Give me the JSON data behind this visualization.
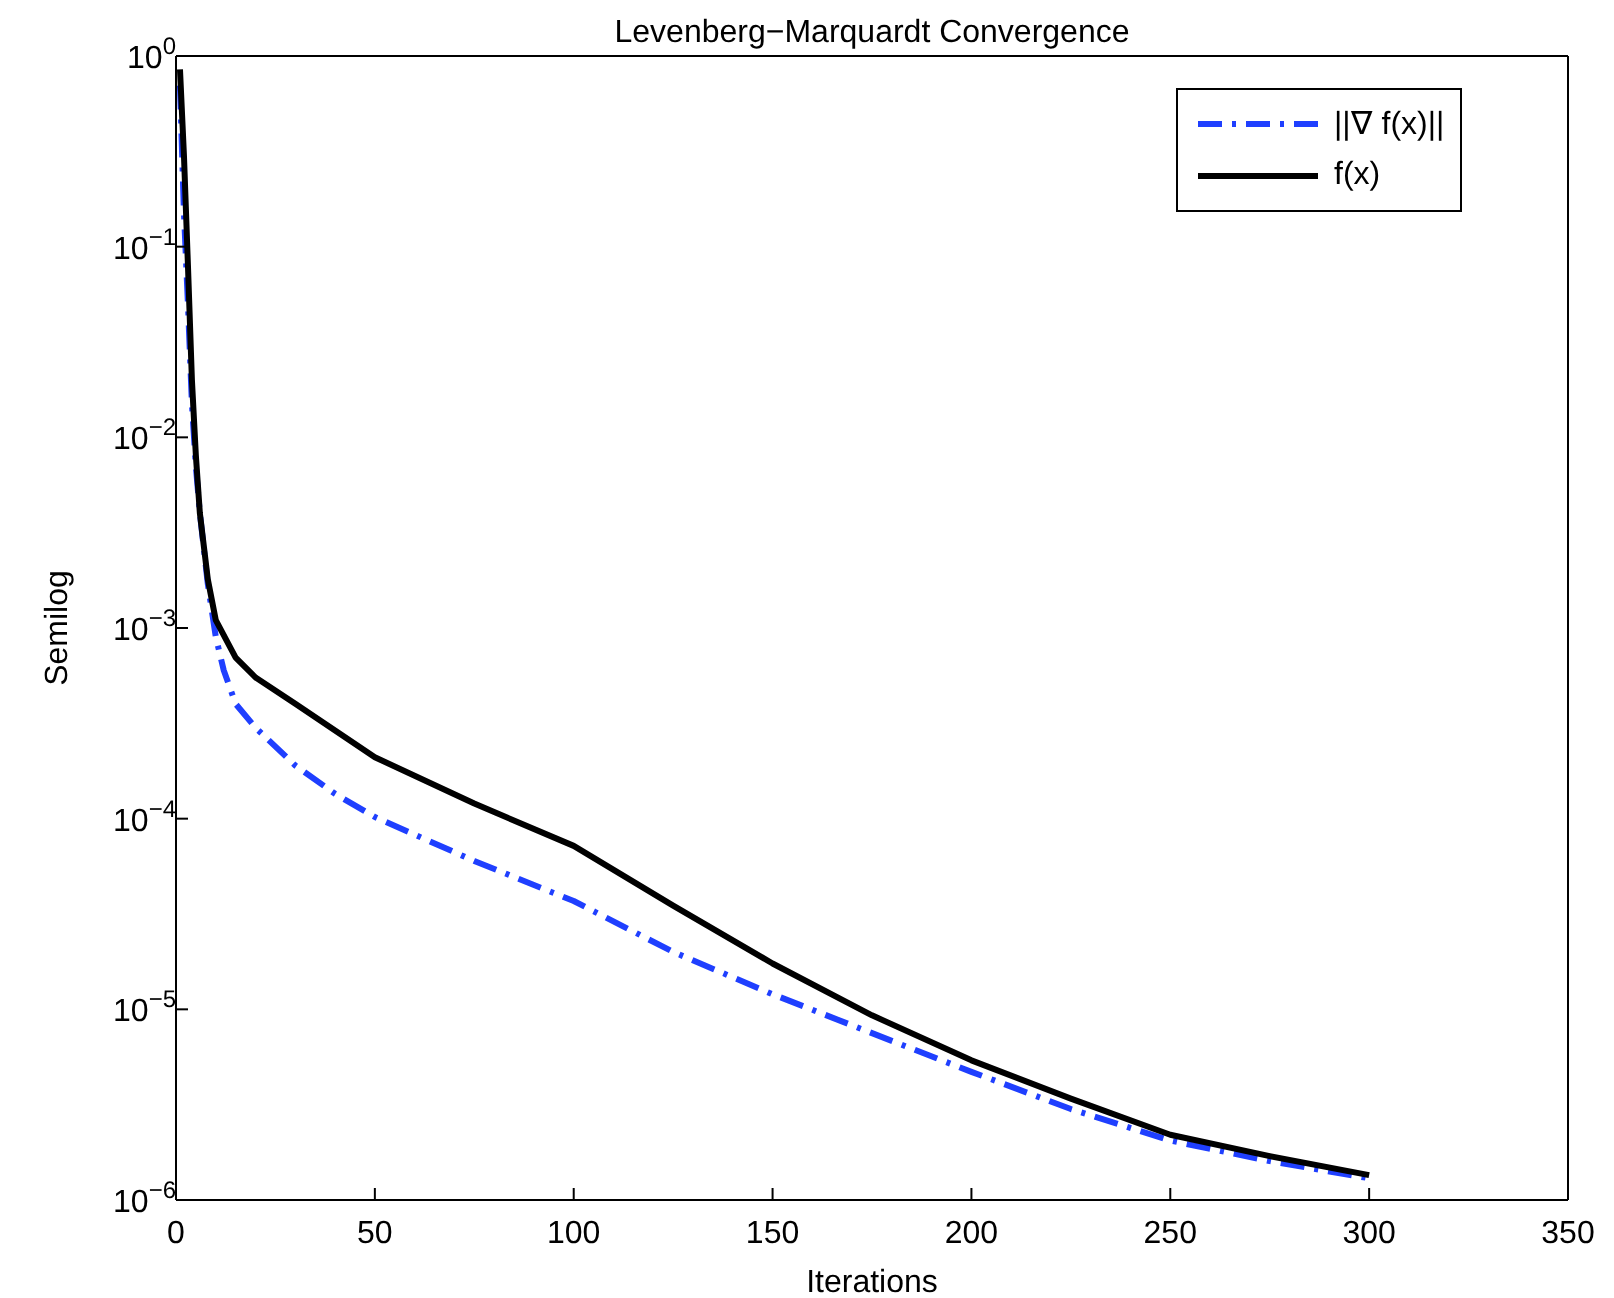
{
  "chart_data": {
    "type": "line",
    "title": "Levenberg−Marquardt Convergence",
    "xlabel": "Iterations",
    "ylabel": "Semilog",
    "log": "y",
    "grid": false,
    "legend": "top right",
    "marker": "none",
    "xlim": [
      0,
      350
    ],
    "xticks": [
      0,
      50,
      100,
      150,
      200,
      250,
      300,
      350
    ],
    "ylim": [
      1e-06,
      1
    ],
    "yticks": [
      {
        "value": 1e-06,
        "label": "10$^{−6}$"
      },
      {
        "value": 1e-05,
        "label": "10$^{−5}$"
      },
      {
        "value": 0.0001,
        "label": "10$^{−4}$"
      },
      {
        "value": 0.001,
        "label": "10$^{−3}$"
      },
      {
        "value": 0.01,
        "label": "10$^{−2}$"
      },
      {
        "value": 0.1,
        "label": "10$^{−1}$"
      },
      {
        "value": 1,
        "label": "10$^{0}$"
      }
    ],
    "series": [
      {
        "name": "||∇ f(x)||",
        "color": "#1f3fff",
        "line_style": "dashdot",
        "x": [
          1,
          2,
          3,
          4,
          5,
          6,
          8,
          10,
          12,
          15,
          20,
          30,
          40,
          50,
          75,
          100,
          125,
          150,
          175,
          200,
          225,
          250,
          275,
          300
        ],
        "values": [
          0.7,
          0.15,
          0.05,
          0.015,
          0.007,
          0.004,
          0.0017,
          0.0009,
          0.0006,
          0.0004,
          0.0003,
          0.00019,
          0.000135,
          0.000102,
          6e-05,
          3.7e-05,
          2e-05,
          1.2e-05,
          7.5e-06,
          4.7e-06,
          3e-06,
          2.05e-06,
          1.6e-06,
          1.3e-06
        ]
      },
      {
        "name": "f(x)",
        "color": "#000000",
        "line_style": "solid",
        "x": [
          1,
          2,
          3,
          4,
          5,
          6,
          8,
          10,
          15,
          20,
          30,
          40,
          50,
          75,
          100,
          125,
          150,
          175,
          200,
          225,
          250,
          275,
          300
        ],
        "values": [
          0.85,
          0.3,
          0.08,
          0.02,
          0.008,
          0.004,
          0.0018,
          0.0011,
          0.0007,
          0.00055,
          0.0004,
          0.00029,
          0.00021,
          0.00012,
          7.2e-05,
          3.5e-05,
          1.74e-05,
          9.3e-06,
          5.4e-06,
          3.4e-06,
          2.2e-06,
          1.7e-06,
          1.35e-06
        ]
      }
    ]
  }
}
